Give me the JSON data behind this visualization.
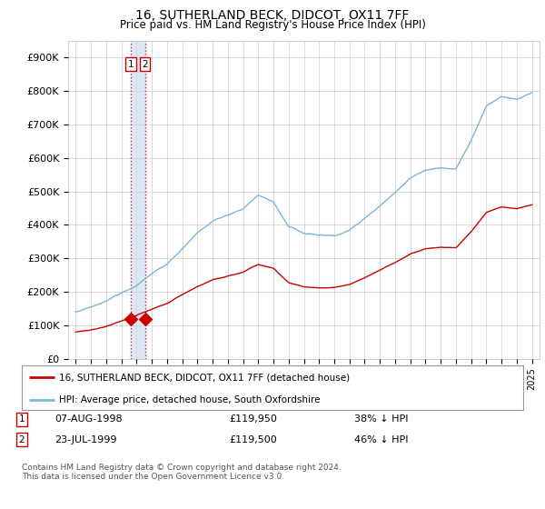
{
  "title": "16, SUTHERLAND BECK, DIDCOT, OX11 7FF",
  "subtitle": "Price paid vs. HM Land Registry's House Price Index (HPI)",
  "hpi_color": "#7ab5d8",
  "price_color": "#cc0000",
  "marker_color": "#cc0000",
  "background_plot": "#ffffff",
  "background_fig": "#ffffff",
  "grid_color": "#cccccc",
  "dashed_color": "#cc0000",
  "span_color": "#dde8f5",
  "ylim": [
    0,
    950000
  ],
  "yticks": [
    0,
    100000,
    200000,
    300000,
    400000,
    500000,
    600000,
    700000,
    800000,
    900000
  ],
  "ytick_labels": [
    "£0",
    "£100K",
    "£200K",
    "£300K",
    "£400K",
    "£500K",
    "£600K",
    "£700K",
    "£800K",
    "£900K"
  ],
  "legend_label_price": "16, SUTHERLAND BECK, DIDCOT, OX11 7FF (detached house)",
  "legend_label_hpi": "HPI: Average price, detached house, South Oxfordshire",
  "annotation1_date": "07-AUG-1998",
  "annotation1_price": "£119,950",
  "annotation1_pct": "38% ↓ HPI",
  "annotation2_date": "23-JUL-1999",
  "annotation2_price": "£119,500",
  "annotation2_pct": "46% ↓ HPI",
  "footnote": "Contains HM Land Registry data © Crown copyright and database right 2024.\nThis data is licensed under the Open Government Licence v3.0.",
  "sale1_year": 1998.6,
  "sale1_value": 119950,
  "sale2_year": 1999.55,
  "sale2_value": 119500
}
